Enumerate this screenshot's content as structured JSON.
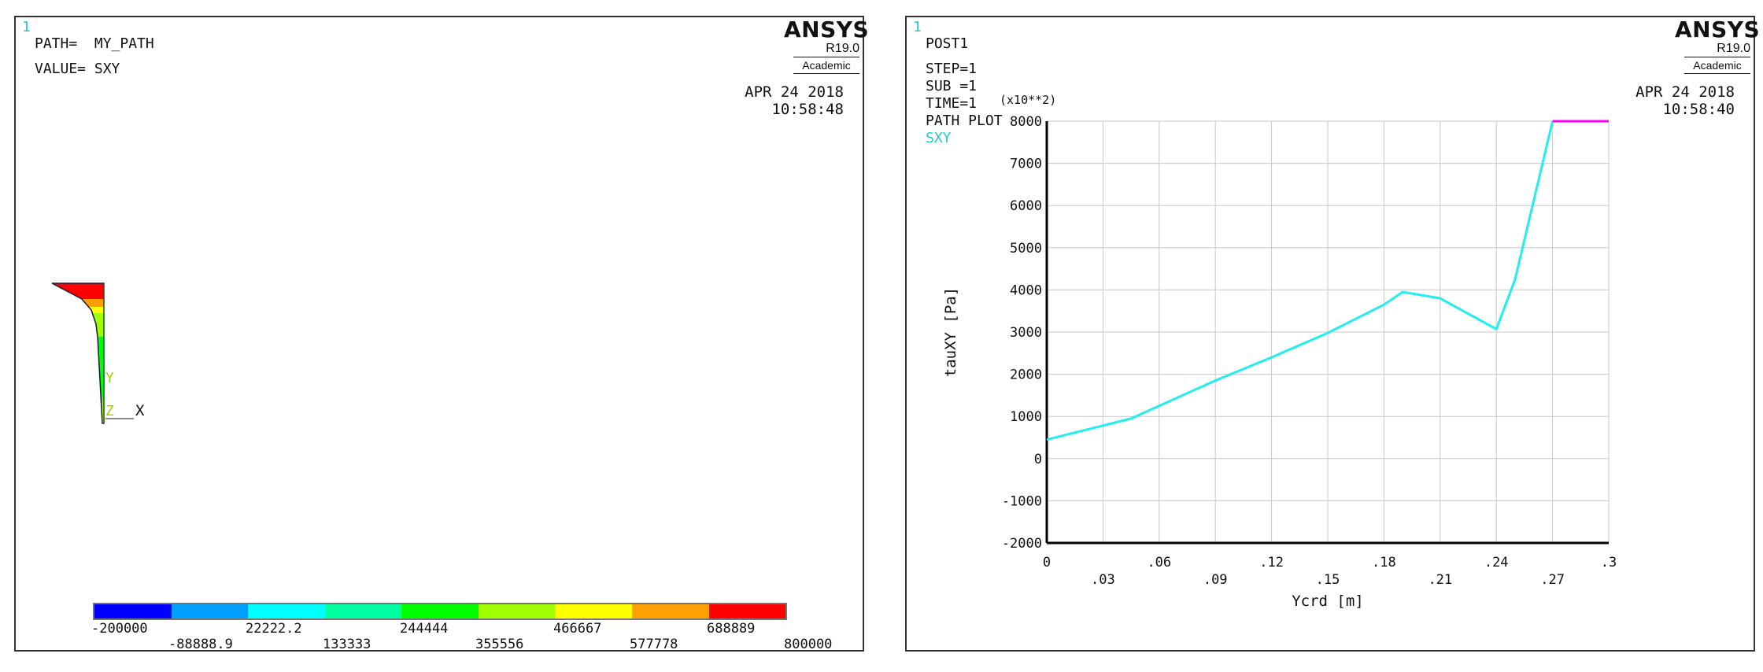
{
  "left_window": {
    "window_number": "1",
    "path_line": "PATH=  MY_PATH",
    "value_line": "VALUE= SXY",
    "brand": {
      "name": "ANSYS",
      "version": "R19.0",
      "edition": "Academic"
    },
    "date": "APR 24 2018",
    "time": "10:58:48",
    "triad": {
      "y_label": "Y",
      "z_label": "Z",
      "x_label": "X"
    },
    "contour_colors": [
      "#0000ff",
      "#00a0ff",
      "#00ffff",
      "#00ffa0",
      "#00ff00",
      "#a0ff00",
      "#ffff00",
      "#ffa000",
      "#ff0000"
    ],
    "legend_labels_top": [
      "-200000",
      "22222.2",
      "244444",
      "466667",
      "688889"
    ],
    "legend_labels_bottom": [
      "-88888.9",
      "133333",
      "355556",
      "577778",
      "800000"
    ]
  },
  "right_window": {
    "window_number": "1",
    "info_lines": [
      "POST1",
      "STEP=1",
      "SUB =1",
      "TIME=1",
      "PATH PLOT"
    ],
    "series_label": "SXY",
    "brand": {
      "name": "ANSYS",
      "version": "R19.0",
      "edition": "Academic"
    },
    "date": "APR 24 2018",
    "time": "10:58:40",
    "colors": {
      "series": "#22eeee",
      "clip": "#ff00ff",
      "label": "#22cccc"
    }
  },
  "chart_data": {
    "type": "line",
    "title": "",
    "xlabel": "Ycrd [m]",
    "ylabel": "tauXY [Pa]",
    "y_multiplier_label": "(x10**2)",
    "xlim": [
      0,
      0.3
    ],
    "ylim": [
      -2000,
      8000
    ],
    "x_ticks": [
      "0",
      ".03",
      ".06",
      ".09",
      ".12",
      ".15",
      ".18",
      ".21",
      ".24",
      ".27",
      ".3"
    ],
    "y_ticks": [
      "-2000",
      "-1000",
      "0",
      "1000",
      "2000",
      "3000",
      "4000",
      "5000",
      "6000",
      "7000",
      "8000"
    ],
    "grid": true,
    "series": [
      {
        "name": "SXY",
        "x": [
          0,
          0.045,
          0.06,
          0.09,
          0.12,
          0.15,
          0.18,
          0.19,
          0.21,
          0.24,
          0.25,
          0.27
        ],
        "y": [
          450,
          950,
          1250,
          1850,
          2400,
          2980,
          3650,
          3950,
          3800,
          3070,
          4250,
          8000
        ]
      }
    ],
    "clipped_segment": {
      "x": [
        0.27,
        0.3
      ],
      "y": [
        8000,
        8000
      ]
    }
  }
}
